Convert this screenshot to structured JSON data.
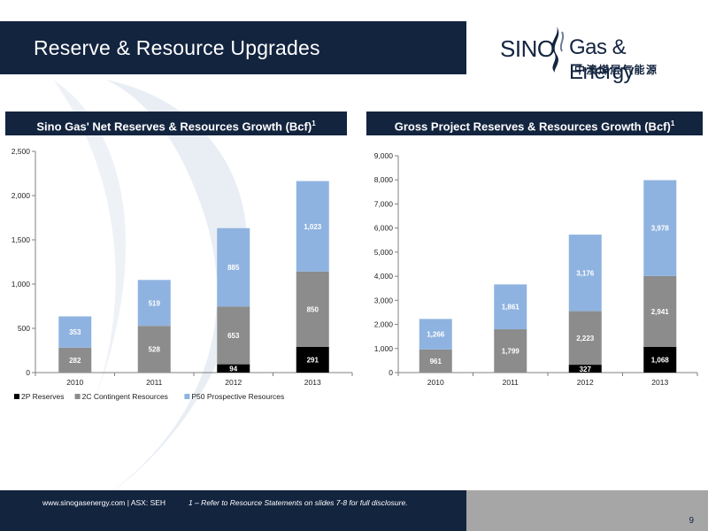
{
  "header": {
    "title": "Reserve & Resource Upgrades"
  },
  "logo": {
    "name_left": "SINO",
    "name_right": "Gas & Energy",
    "chinese": "中澳煤层气能源"
  },
  "colors": {
    "navy": "#13243f",
    "reserves": "#000000",
    "contingent": "#8c8c8c",
    "prospective": "#8fb3e0"
  },
  "chart_data": [
    {
      "type": "bar",
      "stacked": true,
      "title": "Sino Gas' Net Reserves & Resources Growth (Bcf)",
      "title_sup": "1",
      "categories": [
        "2010",
        "2011",
        "2012",
        "2013"
      ],
      "series": [
        {
          "name": "2P Reserves",
          "values": [
            0,
            0,
            94,
            291
          ],
          "labels": [
            "",
            "",
            "94",
            "291"
          ]
        },
        {
          "name": "2C Contingent Resources",
          "values": [
            282,
            528,
            653,
            850
          ],
          "labels": [
            "282",
            "528",
            "653",
            "850"
          ]
        },
        {
          "name": "P50 Prospective Resources",
          "values": [
            353,
            519,
            885,
            1023
          ],
          "labels": [
            "353",
            "519",
            "885",
            "1,023"
          ]
        }
      ],
      "ylim": [
        0,
        2500
      ],
      "yticks": [
        0,
        500,
        1000,
        1500,
        2000,
        2500
      ],
      "ytick_labels": [
        "0",
        "500",
        "1,000",
        "1,500",
        "2,000",
        "2,500"
      ],
      "legend": "bottom",
      "grid": false
    },
    {
      "type": "bar",
      "stacked": true,
      "title": "Gross Project Reserves & Resources Growth (Bcf)",
      "title_sup": "1",
      "categories": [
        "2010",
        "2011",
        "2012",
        "2013"
      ],
      "series": [
        {
          "name": "2P Reserves",
          "values": [
            0,
            0,
            327,
            1068
          ],
          "labels": [
            "",
            "",
            "327",
            "1,068"
          ]
        },
        {
          "name": "2C Contingent Resources",
          "values": [
            961,
            1799,
            2223,
            2941
          ],
          "labels": [
            "961",
            "1,799",
            "2,223",
            "2,941"
          ]
        },
        {
          "name": "P50 Prospective Resources",
          "values": [
            1266,
            1861,
            3176,
            3978
          ],
          "labels": [
            "1,266",
            "1,861",
            "3,176",
            "3,978"
          ]
        }
      ],
      "ylim": [
        0,
        9000
      ],
      "yticks": [
        0,
        1000,
        2000,
        3000,
        4000,
        5000,
        6000,
        7000,
        8000,
        9000
      ],
      "ytick_labels": [
        "0",
        "1,000",
        "2,000",
        "3,000",
        "4,000",
        "5,000",
        "6,000",
        "7,000",
        "8,000",
        "9,000"
      ],
      "legend": "none",
      "grid": false
    }
  ],
  "footer": {
    "site": "www.sinogasenergy.com | ASX: SEH",
    "note": "1 – Refer to Resource Statements on slides 7-8 for full disclosure.",
    "page": "9"
  }
}
